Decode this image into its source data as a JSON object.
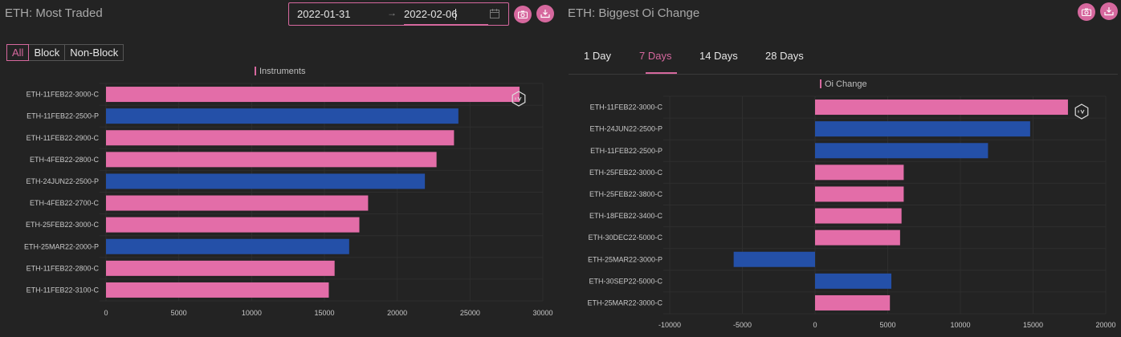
{
  "left": {
    "title": "ETH: Most Traded",
    "date_from": "2022-01-31",
    "date_arrow": "→",
    "date_to": "2022-02-06",
    "filters": [
      "All",
      "Block",
      "Non-Block"
    ],
    "active_filter": "All",
    "legend": "Instruments"
  },
  "right": {
    "title": "ETH: Biggest Oi Change",
    "tabs": [
      "1 Day",
      "7 Days",
      "14 Days",
      "28 Days"
    ],
    "active_tab": "7 Days",
    "legend": "Oi Change"
  },
  "colors": {
    "pink": "#e36da8",
    "blue": "#2450a8",
    "accent": "#d6689e",
    "background": "#232323"
  },
  "chart_data": [
    {
      "type": "bar",
      "orientation": "horizontal",
      "categories": [
        "ETH-11FEB22-3000-C",
        "ETH-11FEB22-2500-P",
        "ETH-11FEB22-2900-C",
        "ETH-4FEB22-2800-C",
        "ETH-24JUN22-2500-P",
        "ETH-4FEB22-2700-C",
        "ETH-25FEB22-3000-C",
        "ETH-25MAR22-2000-P",
        "ETH-11FEB22-2800-C",
        "ETH-11FEB22-3100-C"
      ],
      "values": [
        28400,
        24200,
        23900,
        22700,
        21900,
        18000,
        17400,
        16700,
        15700,
        15300
      ],
      "bar_colors": [
        "pink",
        "blue",
        "pink",
        "pink",
        "blue",
        "pink",
        "pink",
        "blue",
        "pink",
        "pink"
      ],
      "xlim": [
        0,
        30000
      ],
      "xticks": [
        0,
        5000,
        10000,
        15000,
        20000,
        25000,
        30000
      ],
      "legend": [
        "Instruments"
      ]
    },
    {
      "type": "bar",
      "orientation": "horizontal",
      "categories": [
        "ETH-11FEB22-3000-C",
        "ETH-24JUN22-2500-P",
        "ETH-11FEB22-2500-P",
        "ETH-25FEB22-3000-C",
        "ETH-25FEB22-3800-C",
        "ETH-18FEB22-3400-C",
        "ETH-30DEC22-5000-C",
        "ETH-25MAR22-3000-P",
        "ETH-30SEP22-5000-C",
        "ETH-25MAR22-3000-C"
      ],
      "values": [
        17400,
        14800,
        11900,
        6100,
        6100,
        5950,
        5850,
        -5600,
        5250,
        5150
      ],
      "bar_colors": [
        "pink",
        "blue",
        "blue",
        "pink",
        "pink",
        "pink",
        "pink",
        "blue",
        "blue",
        "pink"
      ],
      "xlim": [
        -10000,
        20000
      ],
      "xticks": [
        -10000,
        -5000,
        0,
        5000,
        10000,
        15000,
        20000
      ],
      "legend": [
        "Oi Change"
      ]
    }
  ]
}
